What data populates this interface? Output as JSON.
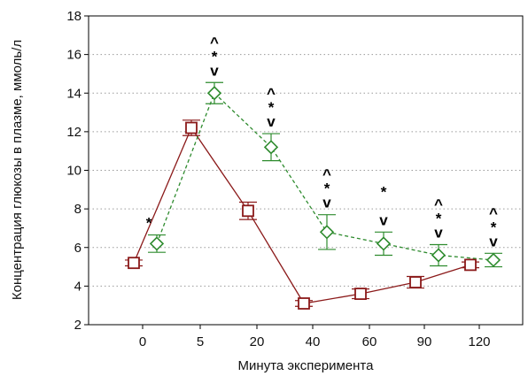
{
  "chart_data": {
    "type": "line",
    "xlabel": "Минута эксперимента",
    "ylabel": "Концентрация глюкозы в плазме, ммоль/л",
    "categories": [
      "0",
      "5",
      "20",
      "40",
      "60",
      "90",
      "120"
    ],
    "ylim": [
      2,
      18
    ],
    "yticks": [
      2,
      4,
      6,
      8,
      10,
      12,
      14,
      16,
      18
    ],
    "grid": "horizontal dotted",
    "legend": "none",
    "series": [
      {
        "style": "solid",
        "marker": "square",
        "color": "#8b1a1a",
        "values": [
          5.2,
          12.2,
          7.9,
          3.1,
          3.6,
          4.2,
          5.1
        ],
        "err": [
          0.15,
          0.4,
          0.45,
          0.15,
          0.25,
          0.3,
          0.15
        ]
      },
      {
        "style": "dashed",
        "marker": "diamond",
        "color": "#2e8b2e",
        "values": [
          6.2,
          14.0,
          11.2,
          6.8,
          6.2,
          5.6,
          5.35
        ],
        "err": [
          0.45,
          0.55,
          0.7,
          0.9,
          0.6,
          0.55,
          0.35
        ]
      }
    ],
    "annotations": [
      {
        "index": 0,
        "text": "*"
      },
      {
        "index": 1,
        "text": "^\n*\nv"
      },
      {
        "index": 2,
        "text": "^\n*\nv"
      },
      {
        "index": 3,
        "text": "^\n*\nv"
      },
      {
        "index": 4,
        "text": "*\n\nv"
      },
      {
        "index": 5,
        "text": "^\n*\nv"
      },
      {
        "index": 6,
        "text": "^\n*\nv"
      }
    ]
  }
}
